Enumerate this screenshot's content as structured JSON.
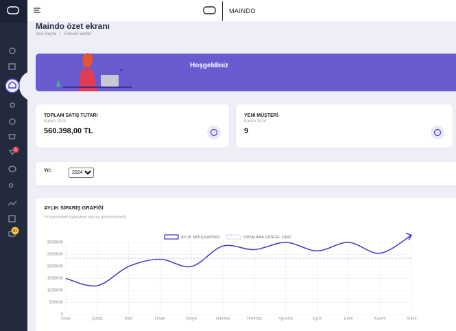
{
  "topbar": {
    "brand": "MAINDO"
  },
  "sidebar": {
    "badges": [
      "1",
      "91"
    ]
  },
  "header": {
    "title": "Maindo özet ekranı",
    "breadcrumb": [
      "Ana Sayfa",
      "Güncel veriler"
    ],
    "breadcrumb_separator": "/"
  },
  "banner": {
    "title": "Hoşgeldiniz"
  },
  "cards": [
    {
      "title": "TOPLAM SATIŞ TUTARI",
      "period": "Kasım 2024",
      "value": "560.398,00 TL"
    },
    {
      "title": "YENİ MÜŞTERİ",
      "period": "Kasım 2024",
      "value": "9"
    }
  ],
  "filter": {
    "label": "Yıl:",
    "year": "2024"
  },
  "chart_data": {
    "type": "line",
    "title": "AYLIK SİPARİŞ GRAFİĞİ",
    "subtitle": "Yıl içerisindeki siparişlerin tutarını göstermektedir.",
    "categories": [
      "Ocak",
      "Şubat",
      "Mart",
      "Nisan",
      "Mayıs",
      "Haziran",
      "Temmuz",
      "Ağustos",
      "Eylül",
      "Ekim",
      "Kasım",
      "Aralık"
    ],
    "series": [
      {
        "name": "AYLIK SATIŞ RAPORU",
        "color": "#4b3cc4",
        "values": [
          1500000,
          1200000,
          2000000,
          2300000,
          2000000,
          2850000,
          2700000,
          3000000,
          2650000,
          3000000,
          2550000,
          3300000
        ]
      },
      {
        "name": "ORTALAMA GÜNCEL CİRO",
        "color": "#c9c6ec",
        "dashed": true,
        "values": [
          2340000,
          2340000,
          2340000,
          2340000,
          2340000,
          2340000,
          2340000,
          2340000,
          2340000,
          2340000,
          2340000,
          2340000
        ]
      }
    ],
    "ylim": [
      0,
      3000000
    ],
    "yticks": [
      0,
      500000,
      1000000,
      1500000,
      2000000,
      2500000,
      3000000
    ],
    "grid": true
  }
}
